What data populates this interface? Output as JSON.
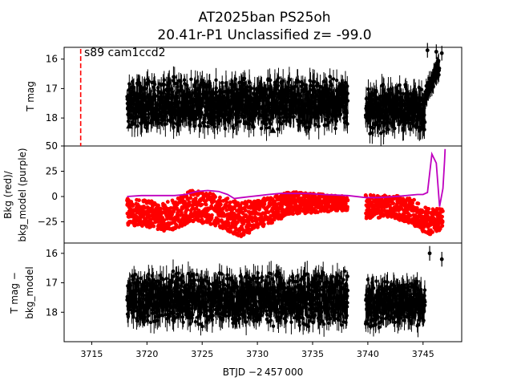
{
  "chart_data": {
    "title_line1": "AT2025ban  PS25oh",
    "title_line2": "20.41r-P1 Unclassified z= -99.0",
    "xlabel": "BTJD −2 457 000",
    "xlim": [
      3712.5,
      3748.5
    ],
    "xticks": [
      3715,
      3720,
      3725,
      3730,
      3735,
      3740,
      3745
    ],
    "xtick_labels": [
      "3715",
      "3720",
      "3725",
      "3730",
      "3735",
      "3740",
      "3745"
    ],
    "sector_marker": {
      "x": 3714.0,
      "label": "s89 cam1ccd2",
      "color": "#ff0000"
    },
    "gap": [
      3738.2,
      3739.8
    ],
    "panels": [
      {
        "type": "scatter",
        "ylabel": "T mag",
        "ylim": [
          18.95,
          15.6
        ],
        "yticks": [
          16,
          17,
          18
        ],
        "ytick_labels": [
          "16",
          "17",
          "18"
        ],
        "series": [
          {
            "color": "#000000",
            "segments": [
              {
                "x": [
                  3718.2,
                  3738.2
                ],
                "y": [
                  16.4,
                  18.6
                ]
              },
              {
                "x": [
                  3739.8,
                  3745.2
                ],
                "y": [
                  16.7,
                  18.7
                ]
              }
            ],
            "rise": {
              "x": [
                3745.2,
                3746.5
              ],
              "y_start": 17.2,
              "y_end": 16.2
            },
            "upper_limits": [
              {
                "x": 3718.4,
                "y": 18.25
              },
              {
                "x": 3731.4,
                "y": 18.4
              }
            ],
            "isolated": [
              {
                "x": 3745.4,
                "y": 15.7
              },
              {
                "x": 3746.2,
                "y": 15.75
              },
              {
                "x": 3746.7,
                "y": 15.8
              }
            ]
          }
        ]
      },
      {
        "type": "scatter",
        "ylabel_line1": "Bkg (red)/",
        "ylabel_line2": "bkg_model (purple)",
        "ylim": [
          -46,
          50
        ],
        "yticks": [
          -25,
          0,
          25,
          50
        ],
        "ytick_labels": [
          "−25",
          "0",
          "25",
          "50"
        ],
        "bkg_color": "#ff0000",
        "model_color": "#bf00bf",
        "bkg_envelope": [
          {
            "x": 3718.2,
            "lo": -28,
            "hi": -2
          },
          {
            "x": 3720.0,
            "lo": -30,
            "hi": -4
          },
          {
            "x": 3722.0,
            "lo": -35,
            "hi": -5
          },
          {
            "x": 3724.0,
            "lo": -25,
            "hi": 6
          },
          {
            "x": 3726.0,
            "lo": -28,
            "hi": 3
          },
          {
            "x": 3728.5,
            "lo": -40,
            "hi": -6
          },
          {
            "x": 3730.5,
            "lo": -30,
            "hi": -2
          },
          {
            "x": 3733.0,
            "lo": -18,
            "hi": 5
          },
          {
            "x": 3736.0,
            "lo": -15,
            "hi": 2
          },
          {
            "x": 3738.2,
            "lo": -14,
            "hi": 0
          },
          {
            "x": 3739.8,
            "lo": -22,
            "hi": 2
          },
          {
            "x": 3742.0,
            "lo": -20,
            "hi": 2
          },
          {
            "x": 3744.0,
            "lo": -28,
            "hi": -2
          },
          {
            "x": 3745.5,
            "lo": -38,
            "hi": -12
          },
          {
            "x": 3746.8,
            "lo": -32,
            "hi": -12
          }
        ],
        "model_x": [
          3718.2,
          3719.5,
          3721.0,
          3722.5,
          3723.5,
          3724.5,
          3725.5,
          3726.5,
          3727.3,
          3727.9,
          3728.6,
          3729.4,
          3730.2,
          3731.0,
          3732.0,
          3733.0,
          3734.5,
          3736.0,
          3738.2,
          3739.8,
          3741.0,
          3742.5,
          3743.5,
          3744.5,
          3745.0,
          3745.4,
          3745.8,
          3746.2,
          3746.5,
          3746.8,
          3746.95,
          3747.0
        ],
        "model_y": [
          0,
          1,
          1,
          1,
          2,
          5,
          6,
          5,
          2,
          -2,
          -1,
          0,
          1,
          2,
          3,
          3,
          3,
          2,
          1,
          -1,
          -1,
          0,
          1,
          2,
          2,
          4,
          42,
          33,
          -10,
          8,
          35,
          47
        ]
      },
      {
        "type": "scatter",
        "ylabel_line1": "T mag −",
        "ylabel_line2": "bkg_model",
        "ylim": [
          19.0,
          15.65
        ],
        "yticks": [
          16,
          17,
          18
        ],
        "ytick_labels": [
          "16",
          "17",
          "18"
        ],
        "series": [
          {
            "color": "#000000",
            "segments": [
              {
                "x": [
                  3718.2,
                  3738.2
                ],
                "y": [
                  16.4,
                  18.7
                ]
              },
              {
                "x": [
                  3739.8,
                  3745.2
                ],
                "y": [
                  16.7,
                  18.7
                ]
              }
            ],
            "isolated": [
              {
                "x": 3745.6,
                "y": 16.0
              },
              {
                "x": 3746.7,
                "y": 16.2
              }
            ]
          }
        ]
      }
    ]
  }
}
